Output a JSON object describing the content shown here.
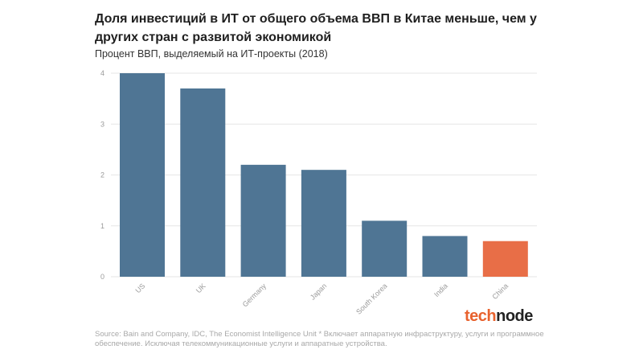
{
  "title": "Доля инвестиций в ИТ от общего объема ВВП в Китае меньше, чем у других стран с развитой экономикой",
  "subtitle": "Процент ВВП, выделяемый на ИТ-проекты (2018)",
  "source": "Source: Bain and Company, IDC, The Economist Intelligence Unit * Включает аппаратную инфраструктуру, услуги и программное обеспечение. Исключая телекоммуникационные услуги и аппаратные устройства.",
  "logo": {
    "part1": "tech",
    "part2": "node"
  },
  "colors": {
    "bar": "#4f7594",
    "highlight": "#e86e47",
    "grid": "#e6e6e6",
    "tick": "#9a9a9a"
  },
  "chart_data": {
    "type": "bar",
    "categories": [
      "US",
      "UK",
      "Germany",
      "Japan",
      "South Korea",
      "India",
      "China"
    ],
    "values": [
      4.0,
      3.7,
      2.2,
      2.1,
      1.1,
      0.8,
      0.7
    ],
    "highlight": "China",
    "title": "Доля инвестиций в ИТ от общего объема ВВП в Китае меньше, чем у других стран с развитой экономикой",
    "subtitle": "Процент ВВП, выделяемый на ИТ-проекты (2018)",
    "xlabel": "",
    "ylabel": "",
    "ylim": [
      0,
      4
    ],
    "yticks": [
      0,
      1,
      2,
      3,
      4
    ],
    "grid": true,
    "legend": "none"
  }
}
